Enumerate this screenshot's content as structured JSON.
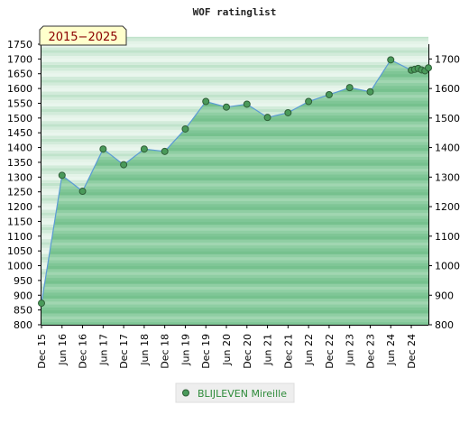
{
  "chart_data": {
    "type": "area",
    "title": "WOF ratinglist",
    "period_badge": "2015−2025",
    "ylim": [
      800,
      1750
    ],
    "y_ticks_left": [
      800,
      850,
      900,
      950,
      1000,
      1050,
      1100,
      1150,
      1200,
      1250,
      1300,
      1350,
      1400,
      1450,
      1500,
      1550,
      1600,
      1650,
      1700,
      1750
    ],
    "y_ticks_right": [
      800,
      900,
      1000,
      1100,
      1200,
      1300,
      1400,
      1500,
      1600,
      1700
    ],
    "x_tick_labels": [
      "Dec 15",
      "Jun 16",
      "Dec 16",
      "Jun 17",
      "Dec 17",
      "Jun 18",
      "Dec 18",
      "Jun 19",
      "Dec 19",
      "Jun 20",
      "Dec 20",
      "Jun 21",
      "Dec 21",
      "Jun 22",
      "Dec 22",
      "Jun 23",
      "Dec 23",
      "Jun 24",
      "Dec 24"
    ],
    "series": [
      {
        "name": "BLIJLEVEN Mireille",
        "color": "#4a9a5a",
        "x": [
          "2015-12",
          "2016-06",
          "2016-12",
          "2017-06",
          "2017-12",
          "2018-06",
          "2018-12",
          "2019-06",
          "2019-12",
          "2020-06",
          "2020-12",
          "2021-06",
          "2021-12",
          "2022-06",
          "2022-12",
          "2023-06",
          "2023-12",
          "2024-06",
          "2024-12",
          "2025-01",
          "2025-02",
          "2025-03",
          "2025-04",
          "2025-05"
        ],
        "values": [
          873,
          1306,
          1252,
          1395,
          1342,
          1395,
          1387,
          1463,
          1556,
          1537,
          1547,
          1502,
          1518,
          1556,
          1579,
          1603,
          1589,
          1697,
          1662,
          1665,
          1668,
          1663,
          1660,
          1670
        ]
      }
    ],
    "legend_position": "bottom-center",
    "grid": true
  }
}
